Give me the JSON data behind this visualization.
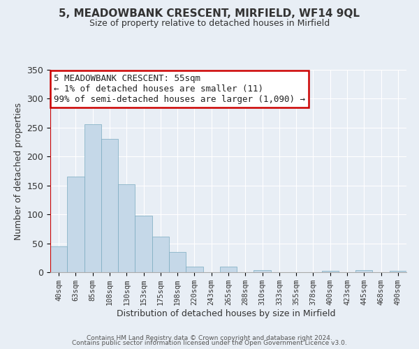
{
  "title": "5, MEADOWBANK CRESCENT, MIRFIELD, WF14 9QL",
  "subtitle": "Size of property relative to detached houses in Mirfield",
  "xlabel": "Distribution of detached houses by size in Mirfield",
  "ylabel": "Number of detached properties",
  "bar_labels": [
    "40sqm",
    "63sqm",
    "85sqm",
    "108sqm",
    "130sqm",
    "153sqm",
    "175sqm",
    "198sqm",
    "220sqm",
    "243sqm",
    "265sqm",
    "288sqm",
    "310sqm",
    "333sqm",
    "355sqm",
    "378sqm",
    "400sqm",
    "423sqm",
    "445sqm",
    "468sqm",
    "490sqm"
  ],
  "bar_values": [
    45,
    165,
    256,
    230,
    152,
    98,
    62,
    35,
    10,
    0,
    10,
    0,
    4,
    0,
    0,
    0,
    3,
    0,
    4,
    0,
    2
  ],
  "bar_color": "#c5d8e8",
  "bar_edge_color": "#7aaabf",
  "highlight_bar_color": "#cc0000",
  "ylim": [
    0,
    350
  ],
  "yticks": [
    0,
    50,
    100,
    150,
    200,
    250,
    300,
    350
  ],
  "annotation_title": "5 MEADOWBANK CRESCENT: 55sqm",
  "annotation_line1": "← 1% of detached houses are smaller (11)",
  "annotation_line2": "99% of semi-detached houses are larger (1,090) →",
  "annotation_box_color": "#ffffff",
  "annotation_box_edge": "#cc0000",
  "footer1": "Contains HM Land Registry data © Crown copyright and database right 2024.",
  "footer2": "Contains public sector information licensed under the Open Government Licence v3.0.",
  "background_color": "#e8eef5",
  "grid_color": "#ffffff",
  "title_fontsize": 11,
  "subtitle_fontsize": 9
}
